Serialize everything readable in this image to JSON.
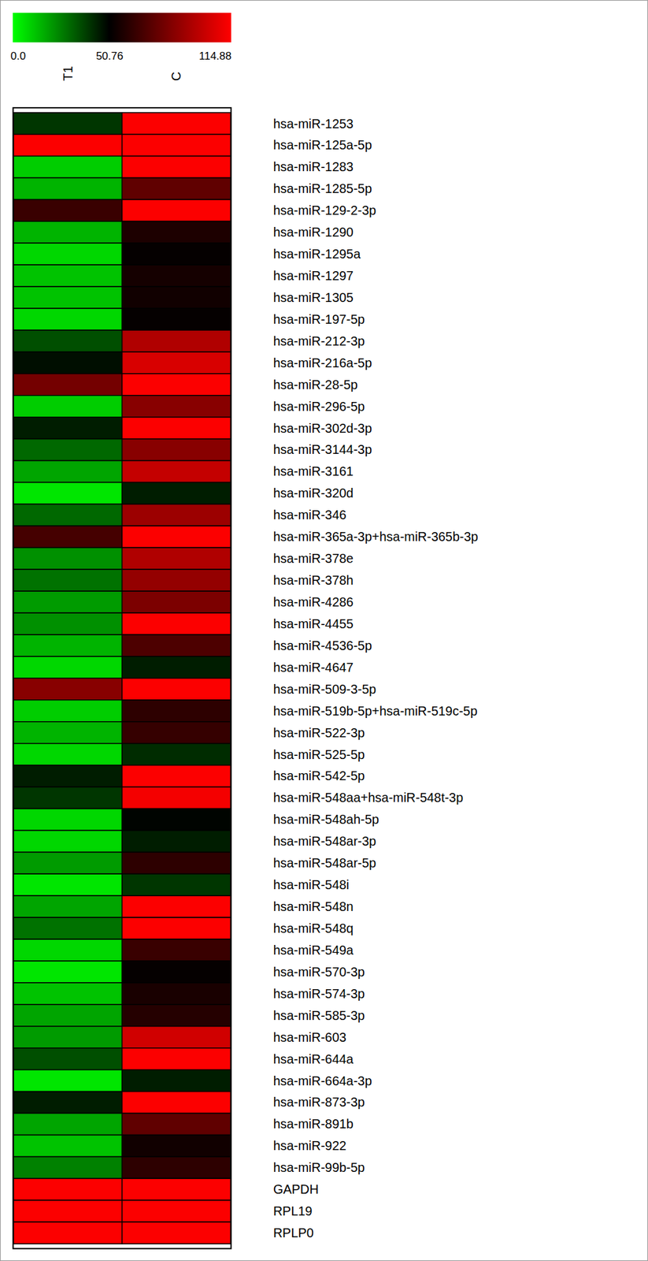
{
  "chart_data": {
    "type": "heatmap",
    "x": [
      "T1",
      "C"
    ],
    "y": [
      "hsa-miR-1253",
      "hsa-miR-125a-5p",
      "hsa-miR-1283",
      "hsa-miR-1285-5p",
      "hsa-miR-129-2-3p",
      "hsa-miR-1290",
      "hsa-miR-1295a",
      "hsa-miR-1297",
      "hsa-miR-1305",
      "hsa-miR-197-5p",
      "hsa-miR-212-3p",
      "hsa-miR-216a-5p",
      "hsa-miR-28-5p",
      "hsa-miR-296-5p",
      "hsa-miR-302d-3p",
      "hsa-miR-3144-3p",
      "hsa-miR-3161",
      "hsa-miR-320d",
      "hsa-miR-346",
      "hsa-miR-365a-3p+hsa-miR-365b-3p",
      "hsa-miR-378e",
      "hsa-miR-378h",
      "hsa-miR-4286",
      "hsa-miR-4455",
      "hsa-miR-4536-5p",
      "hsa-miR-4647",
      "hsa-miR-509-3-5p",
      "hsa-miR-519b-5p+hsa-miR-519c-5p",
      "hsa-miR-522-3p",
      "hsa-miR-525-5p",
      "hsa-miR-542-5p",
      "hsa-miR-548aa+hsa-miR-548t-3p",
      "hsa-miR-548ah-5p",
      "hsa-miR-548ar-3p",
      "hsa-miR-548ar-5p",
      "hsa-miR-548i",
      "hsa-miR-548n",
      "hsa-miR-548q",
      "hsa-miR-549a",
      "hsa-miR-570-3p",
      "hsa-miR-574-3p",
      "hsa-miR-585-3p",
      "hsa-miR-603",
      "hsa-miR-644a",
      "hsa-miR-664a-3p",
      "hsa-miR-873-3p",
      "hsa-miR-891b",
      "hsa-miR-922",
      "hsa-miR-99b-5p",
      "GAPDH",
      "RPL19",
      "RPLP0"
    ],
    "cells": [
      [
        40,
        114
      ],
      [
        114,
        114
      ],
      [
        10,
        114
      ],
      [
        15,
        75
      ],
      [
        65,
        114
      ],
      [
        15,
        58
      ],
      [
        8,
        52
      ],
      [
        12,
        56
      ],
      [
        12,
        55
      ],
      [
        8,
        52
      ],
      [
        35,
        95
      ],
      [
        48,
        105
      ],
      [
        80,
        114
      ],
      [
        10,
        85
      ],
      [
        45,
        114
      ],
      [
        30,
        85
      ],
      [
        18,
        100
      ],
      [
        5,
        45
      ],
      [
        30,
        90
      ],
      [
        68,
        114
      ],
      [
        22,
        95
      ],
      [
        28,
        88
      ],
      [
        20,
        82
      ],
      [
        22,
        114
      ],
      [
        15,
        70
      ],
      [
        8,
        45
      ],
      [
        85,
        114
      ],
      [
        10,
        62
      ],
      [
        15,
        64
      ],
      [
        8,
        42
      ],
      [
        45,
        114
      ],
      [
        40,
        112
      ],
      [
        8,
        50
      ],
      [
        8,
        45
      ],
      [
        20,
        62
      ],
      [
        5,
        40
      ],
      [
        18,
        114
      ],
      [
        28,
        114
      ],
      [
        8,
        65
      ],
      [
        5,
        52
      ],
      [
        12,
        57
      ],
      [
        18,
        60
      ],
      [
        20,
        103
      ],
      [
        35,
        114
      ],
      [
        5,
        45
      ],
      [
        45,
        114
      ],
      [
        18,
        75
      ],
      [
        12,
        55
      ],
      [
        25,
        62
      ],
      [
        114,
        114
      ],
      [
        114,
        114
      ],
      [
        114,
        114
      ]
    ],
    "colorbar": {
      "range": [
        0,
        114.88
      ],
      "ticks": [
        {
          "value": 0,
          "label": "0.0"
        },
        50.76,
        114.88
      ],
      "colors": [
        "#00ff00",
        "#000000",
        "#ff0000"
      ]
    }
  }
}
